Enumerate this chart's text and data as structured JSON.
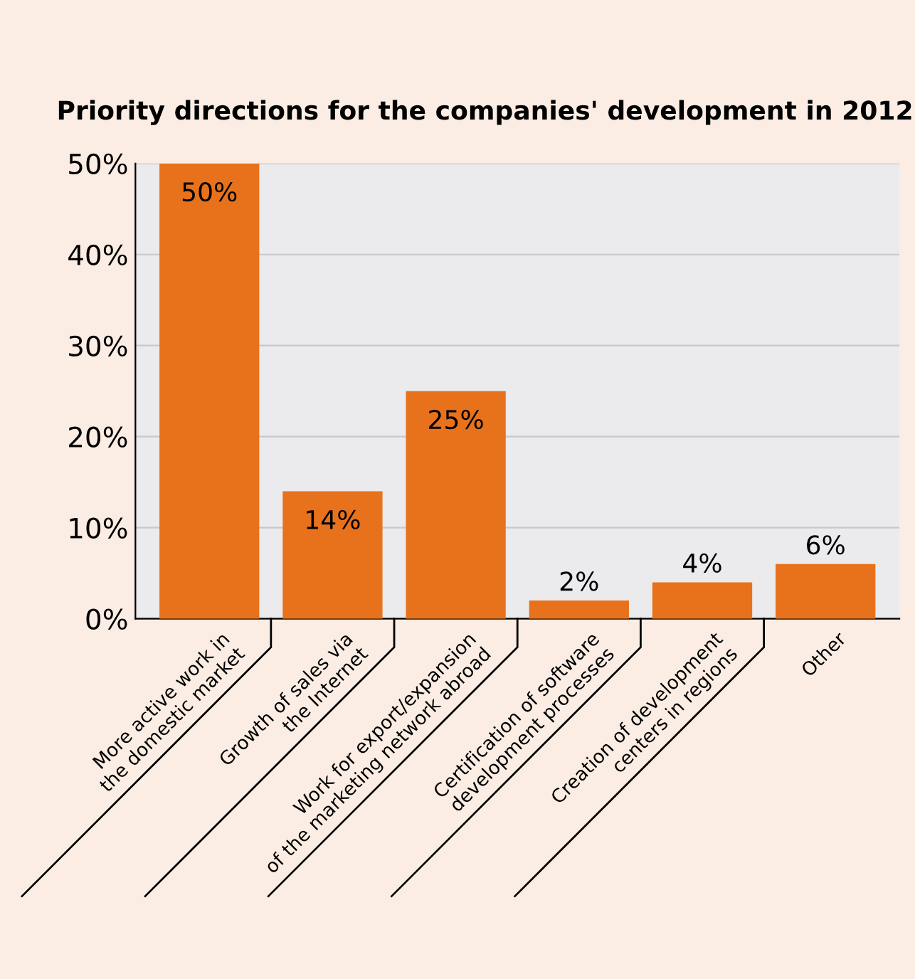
{
  "chart_data": {
    "type": "bar",
    "title": "Priority directions for the companies' development in 2012",
    "categories": [
      "More active work in\nthe domestic market",
      "Growth of sales via\nthe Internet",
      "Work for export/expansion\nof the marketing network abroad",
      "Certification of software\ndevelopment processes",
      "Creation of development\ncenters in regions",
      "Other"
    ],
    "values": [
      50,
      14,
      25,
      2,
      4,
      6
    ],
    "value_labels": [
      "50%",
      "14%",
      "25%",
      "2%",
      "4%",
      "6%"
    ],
    "color": "#e8721c",
    "ylim": [
      0,
      50
    ],
    "yticks": [
      {
        "value": 0,
        "label": "0%"
      },
      {
        "value": 10,
        "label": "10%"
      },
      {
        "value": 20,
        "label": "20%"
      },
      {
        "value": 30,
        "label": "30%"
      },
      {
        "value": 40,
        "label": "40%"
      },
      {
        "value": 50,
        "label": "50%"
      }
    ],
    "grid": "y"
  }
}
